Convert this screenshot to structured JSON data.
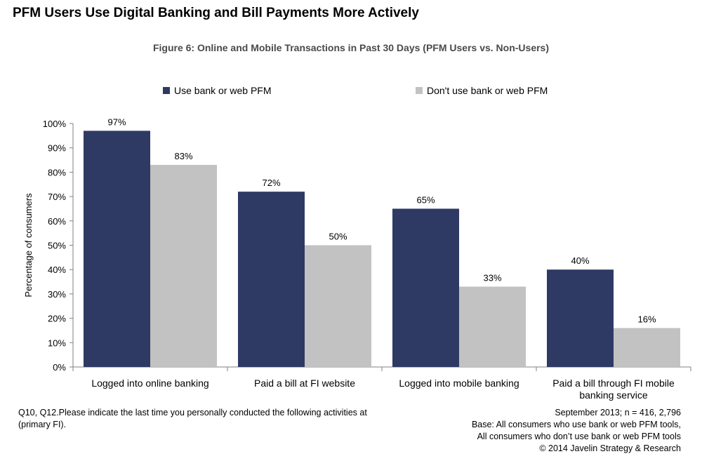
{
  "page": {
    "title": "PFM Users Use Digital Banking and Bill Payments More Actively",
    "figure_title": "Figure 6: Online and Mobile Transactions in Past 30 Days (PFM Users vs. Non-Users)"
  },
  "colors": {
    "series1": "#2e3a64",
    "series2": "#c2c2c2",
    "axis": "#808080"
  },
  "chart_data": {
    "type": "bar",
    "categories": [
      "Logged into online banking",
      "Paid a bill at FI website",
      "Logged into mobile banking",
      "Paid a bill through FI mobile banking service"
    ],
    "category_lines": [
      [
        "Logged into online banking"
      ],
      [
        "Paid a bill at FI website"
      ],
      [
        "Logged into mobile banking"
      ],
      [
        "Paid a bill through FI mobile",
        "banking service"
      ]
    ],
    "series": [
      {
        "name": "Use bank or web PFM",
        "values": [
          97,
          72,
          65,
          40
        ],
        "labels": [
          "97%",
          "72%",
          "65%",
          "40%"
        ]
      },
      {
        "name": "Don't use bank or web PFM",
        "values": [
          83,
          50,
          33,
          16
        ],
        "labels": [
          "83%",
          "50%",
          "33%",
          "16%"
        ]
      }
    ],
    "ylabel": "Percentage of consumers",
    "xlabel": "",
    "ylim": [
      0,
      100
    ],
    "yticks": [
      0,
      10,
      20,
      30,
      40,
      50,
      60,
      70,
      80,
      90,
      100
    ],
    "ytick_labels": [
      "0%",
      "10%",
      "20%",
      "30%",
      "40%",
      "50%",
      "60%",
      "70%",
      "80%",
      "90%",
      "100%"
    ],
    "grid": false,
    "legend_position": "top"
  },
  "notes": {
    "left": "Q10, Q12.Please indicate the last time you personally conducted the following activities at (primary FI).",
    "right": [
      "September 2013; n = 416, 2,796",
      "Base: All consumers who use bank or web PFM tools,",
      "All consumers who don’t use bank or web PFM tools",
      "© 2014 Javelin Strategy & Research"
    ]
  }
}
